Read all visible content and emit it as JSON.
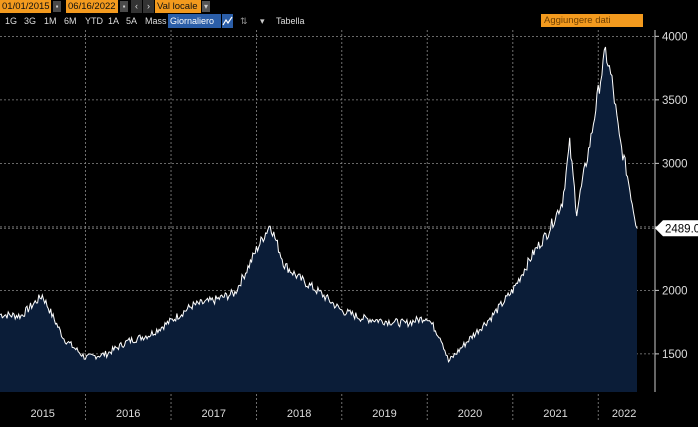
{
  "toolbar": {
    "start_date": "01/01/2015",
    "end_date": "06/16/2022",
    "currency_mode": "Val locale",
    "prev_symbol": "‹",
    "next_symbol": "›",
    "ranges": [
      "1G",
      "3G",
      "1M",
      "6M",
      "YTD",
      "1A",
      "5A",
      "Mass"
    ],
    "frequency": "Giornaliero",
    "table_label": "Tabella",
    "add_data_label": "Aggiungere dati",
    "accent_color": "#f39a1e",
    "active_color": "#2b5ea8"
  },
  "chart_data": {
    "type": "area",
    "x": [
      "2015-01",
      "2015-04",
      "2015-07",
      "2015-10",
      "2016-01",
      "2016-04",
      "2016-07",
      "2016-10",
      "2017-01",
      "2017-04",
      "2017-07",
      "2017-10",
      "2017-12",
      "2018-01",
      "2018-03",
      "2018-05",
      "2018-07",
      "2018-10",
      "2019-01",
      "2019-04",
      "2019-07",
      "2019-10",
      "2020-01",
      "2020-03",
      "2020-04",
      "2020-07",
      "2020-10",
      "2021-01",
      "2021-04",
      "2021-06",
      "2021-08",
      "2021-09",
      "2021-10",
      "2021-12",
      "2022-01",
      "2022-02",
      "2022-03",
      "2022-04",
      "2022-05",
      "2022-06"
    ],
    "series": [
      {
        "values": [
          1810,
          1800,
          1960,
          1620,
          1470,
          1500,
          1600,
          1650,
          1760,
          1880,
          1920,
          1980,
          2200,
          2320,
          2520,
          2200,
          2100,
          1980,
          1840,
          1780,
          1760,
          1740,
          1790,
          1620,
          1440,
          1620,
          1790,
          2000,
          2300,
          2460,
          2700,
          3150,
          2620,
          3200,
          3560,
          3880,
          3650,
          3200,
          2950,
          2489
        ]
      }
    ],
    "xticks": [
      "2015",
      "2016",
      "2017",
      "2018",
      "2019",
      "2020",
      "2021",
      "2022"
    ],
    "yticks": [
      1500,
      2000,
      2500,
      3000,
      3500,
      4000
    ],
    "ylim": [
      1200,
      4050
    ],
    "last_value_label": "2489.0",
    "grid": true,
    "colors": {
      "fill": "#0b1d38",
      "line": "#ffffff",
      "grid": "#8a8a8a",
      "background": "#000000"
    }
  }
}
